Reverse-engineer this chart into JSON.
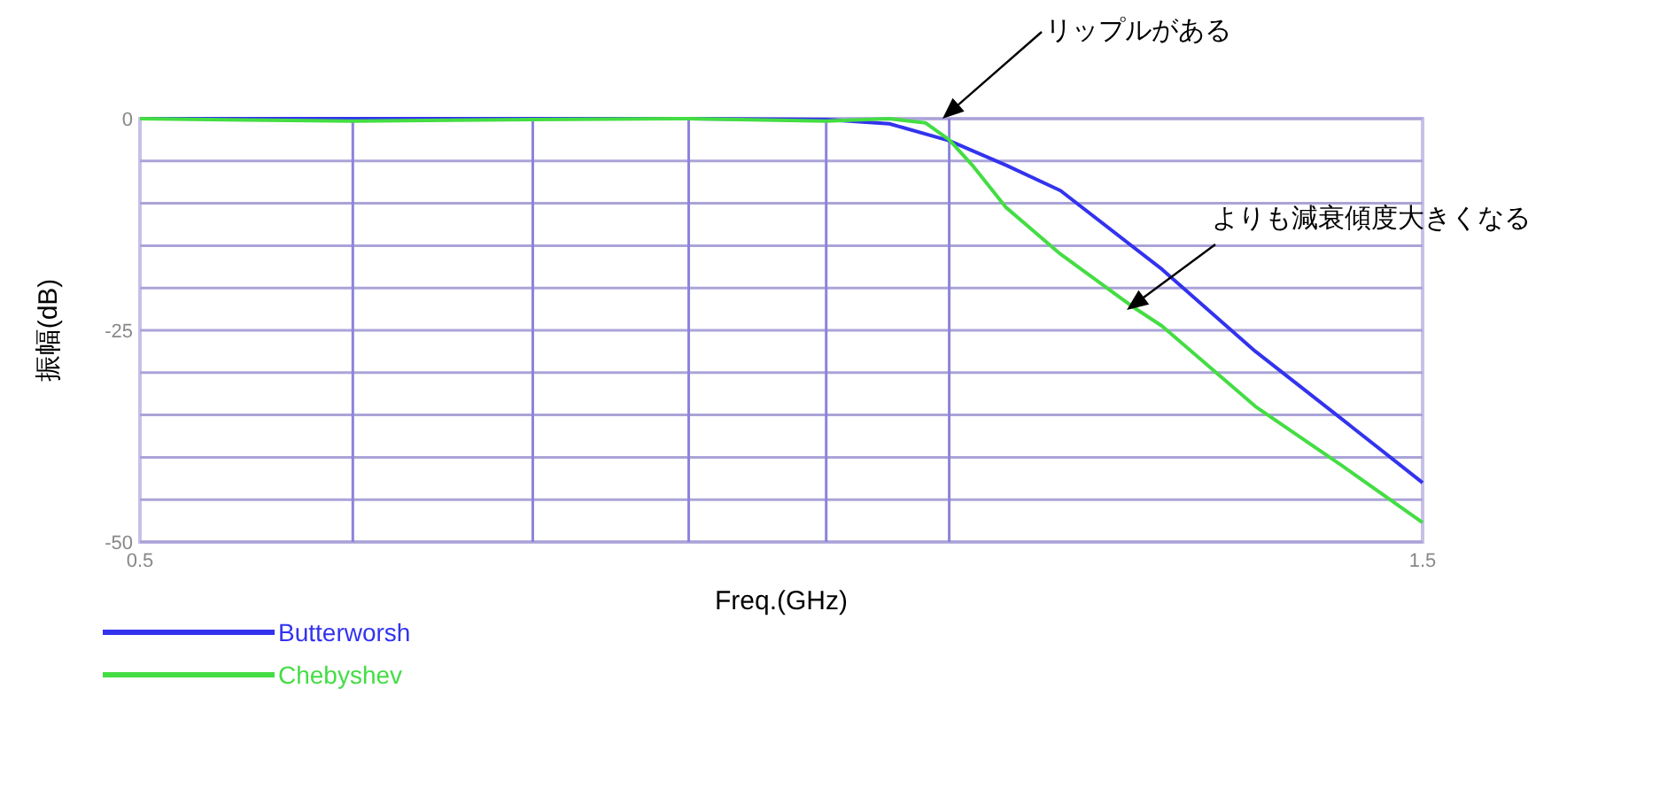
{
  "chart_data": {
    "type": "line",
    "xlabel": "Freq.(GHz)",
    "ylabel": "振幅(dB)",
    "log": "x",
    "xlim": [
      0.5,
      1.5
    ],
    "ylim": [
      -50,
      0
    ],
    "xticks": [
      0.5,
      {
        "value": 0.6,
        "label": null
      },
      {
        "value": 0.7,
        "label": null
      },
      {
        "value": 0.8,
        "label": null
      },
      {
        "value": 0.9,
        "label": null
      },
      {
        "value": 1.0,
        "label": null
      },
      1.5
    ],
    "yticks": [
      -50,
      {
        "value": -45,
        "label": null
      },
      {
        "value": -40,
        "label": null
      },
      {
        "value": -35,
        "label": null
      },
      {
        "value": -30,
        "label": null
      },
      -25,
      {
        "value": -20,
        "label": null
      },
      {
        "value": -15,
        "label": null
      },
      {
        "value": -10,
        "label": null
      },
      {
        "value": -5,
        "label": null
      },
      0
    ],
    "grid": true,
    "legend": "bottom left",
    "marker": "none",
    "line_style": "solid",
    "series": [
      {
        "name": "Butterworsh",
        "color": "#3333ee",
        "x": [
          0.5,
          0.8,
          0.9,
          0.95,
          1.0,
          1.05,
          1.1,
          1.2,
          1.3,
          1.4,
          1.5
        ],
        "values": [
          0,
          0,
          -0.1,
          -0.6,
          -2.6,
          -5.5,
          -8.5,
          -17.8,
          -27.5,
          -35.5,
          -43
        ]
      },
      {
        "name": "Chebyshev",
        "color": "#44dd44",
        "x": [
          0.5,
          0.6,
          0.7,
          0.8,
          0.9,
          0.95,
          0.98,
          1.0,
          1.02,
          1.05,
          1.1,
          1.17,
          1.2,
          1.3,
          1.4,
          1.5
        ],
        "values": [
          0,
          -0.3,
          -0.1,
          0,
          -0.3,
          0,
          -0.5,
          -2.5,
          -5.5,
          -10.5,
          -16,
          -22.2,
          -24.5,
          -34,
          -41,
          -47.7
        ]
      }
    ],
    "annotations": [
      "リップルがある",
      "よりも減衰傾度大きくなる"
    ]
  }
}
